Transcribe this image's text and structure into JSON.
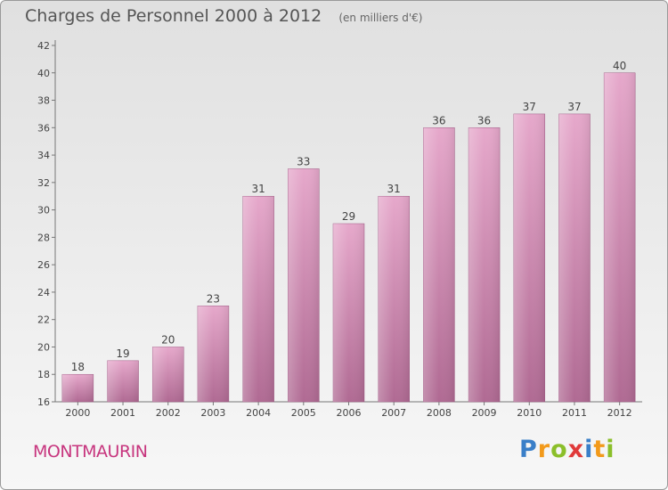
{
  "chart_data": {
    "type": "bar",
    "title": "Charges de Personnel 2000 à 2012",
    "subtitle": "(en milliers d'€)",
    "categories": [
      "2000",
      "2001",
      "2002",
      "2003",
      "2004",
      "2005",
      "2006",
      "2007",
      "2008",
      "2009",
      "2010",
      "2011",
      "2012"
    ],
    "values": [
      18,
      19,
      20,
      23,
      31,
      33,
      29,
      31,
      36,
      36,
      37,
      37,
      40
    ],
    "ylim": [
      16,
      42
    ],
    "yticks": [
      16,
      18,
      20,
      22,
      24,
      26,
      28,
      30,
      32,
      34,
      36,
      38,
      40,
      42
    ],
    "grid": false,
    "bar_color": "#d98cb4",
    "xlabel": "",
    "ylabel": ""
  },
  "commune": "MONTMAURIN",
  "logo": {
    "letters": [
      "P",
      "r",
      "o",
      "x",
      "i",
      "t",
      "i"
    ],
    "colors": [
      "#3a7fc8",
      "#f29a1b",
      "#8bbf2a",
      "#e03a3a",
      "#3a7fc8",
      "#f29a1b",
      "#8bbf2a"
    ]
  }
}
